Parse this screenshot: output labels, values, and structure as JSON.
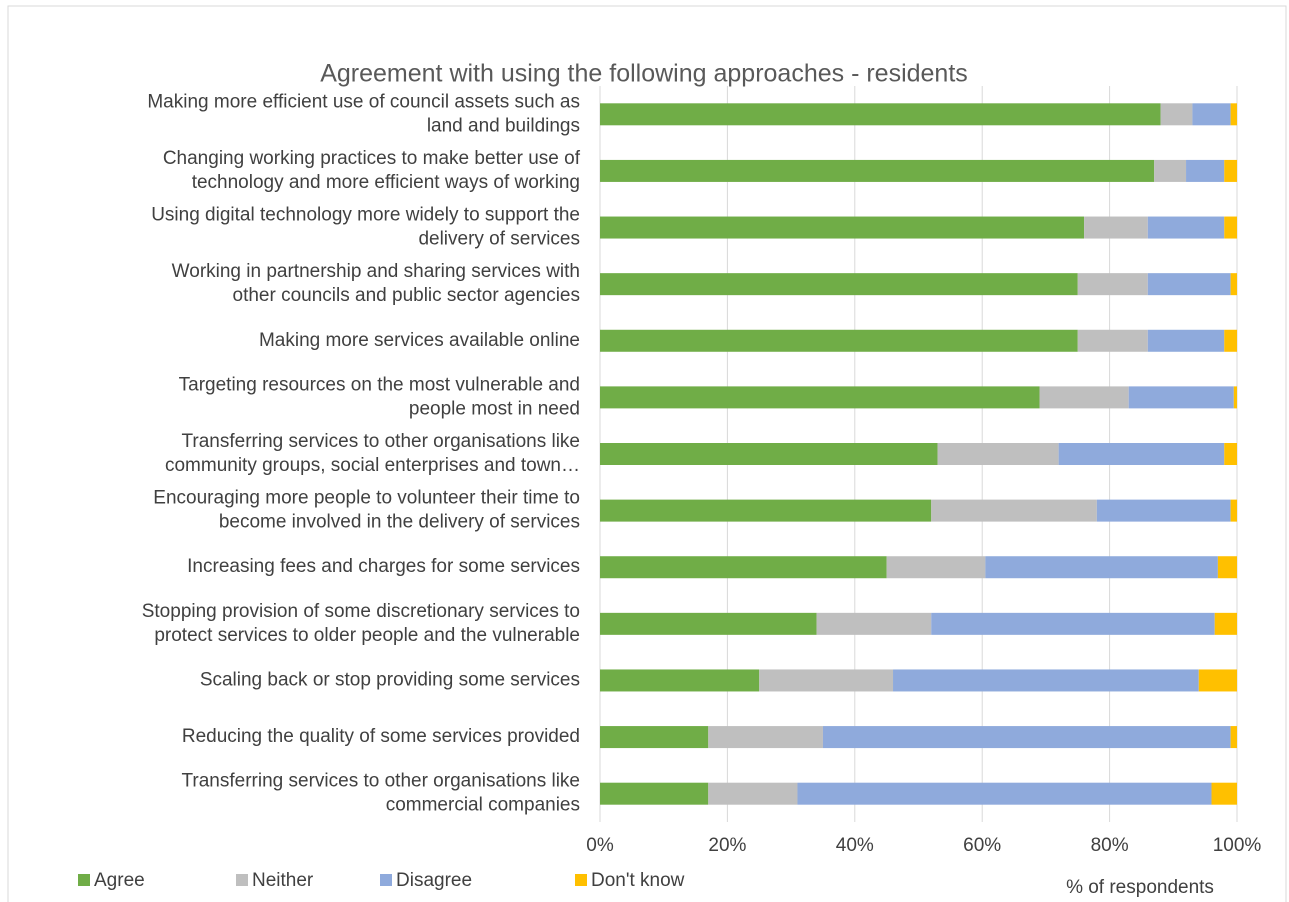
{
  "chart_data": {
    "type": "stacked-bar-horizontal",
    "title": "Agreement with using the following approaches - residents",
    "x_label": "% of respondents",
    "categories": [
      [
        "Making more efficient use of council assets such as",
        "land and buildings"
      ],
      [
        "Changing working practices to make better use of",
        "technology and more efficient ways of working"
      ],
      [
        "Using digital technology more widely to support the",
        "delivery of services"
      ],
      [
        "Working in partnership and sharing services with",
        "other councils and public sector agencies"
      ],
      [
        "Making more services available online"
      ],
      [
        "Targeting resources on the most vulnerable and",
        "people most in need"
      ],
      [
        "Transferring services to other organisations like",
        "community groups, social enterprises and town…"
      ],
      [
        "Encouraging more people to volunteer their time to",
        "become involved in the delivery of services"
      ],
      [
        "Increasing fees and charges for some services"
      ],
      [
        "Stopping provision of some discretionary services to",
        "protect services to older people and the vulnerable"
      ],
      [
        "Scaling back or stop providing some services"
      ],
      [
        "Reducing the quality of some services provided"
      ],
      [
        "Transferring services to other organisations like",
        "commercial companies"
      ]
    ],
    "series": [
      {
        "name": "Agree",
        "color": "#70ad47",
        "values": [
          88,
          87,
          76,
          75,
          75,
          69,
          53,
          52,
          45,
          34,
          25,
          17,
          17
        ]
      },
      {
        "name": "Neither",
        "color": "#bfbfbf",
        "values": [
          5,
          5,
          10,
          11,
          11,
          14,
          19,
          26,
          15.5,
          18,
          21,
          18,
          14
        ]
      },
      {
        "name": "Disagree",
        "color": "#8faadc",
        "values": [
          6,
          6,
          12,
          13,
          12,
          16.5,
          26,
          21,
          36.5,
          44.5,
          48,
          64,
          65
        ]
      },
      {
        "name": "Don't know",
        "color": "#ffc000",
        "values": [
          1,
          2,
          2,
          1,
          2,
          0.5,
          2,
          1,
          3,
          3.5,
          6,
          1,
          4
        ]
      }
    ],
    "xlim": [
      0,
      100
    ],
    "xticks": [
      {
        "value": 0,
        "label": "0%"
      },
      {
        "value": 20,
        "label": "20%"
      },
      {
        "value": 40,
        "label": "40%"
      },
      {
        "value": 60,
        "label": "60%"
      },
      {
        "value": 80,
        "label": "80%"
      },
      {
        "value": 100,
        "label": "100%"
      }
    ],
    "grid": true,
    "legend": "bottom-left"
  }
}
